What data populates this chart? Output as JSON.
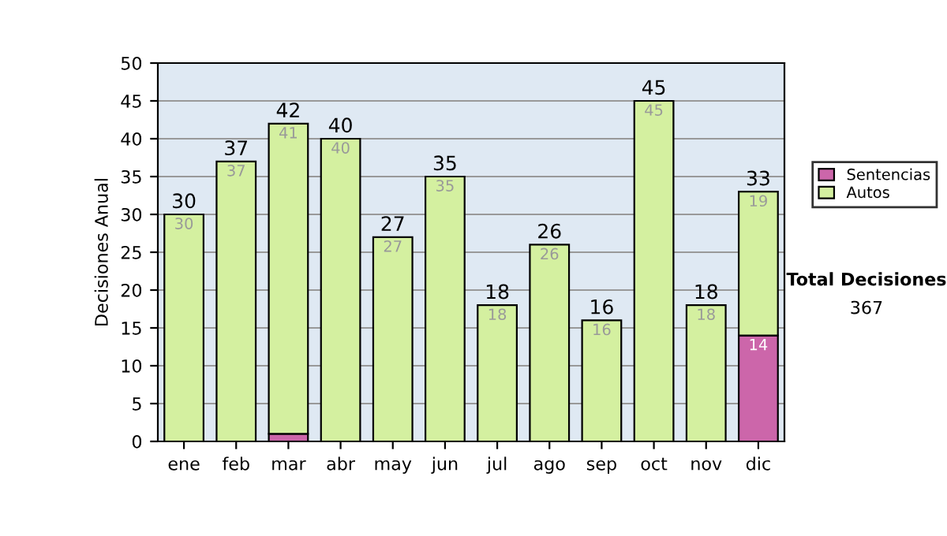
{
  "chart_data": {
    "type": "bar",
    "ylabel": "Decisiones Anual",
    "categories": [
      "ene",
      "feb",
      "mar",
      "abr",
      "may",
      "jun",
      "jul",
      "ago",
      "sep",
      "oct",
      "nov",
      "dic"
    ],
    "stacked": true,
    "series": [
      {
        "name": "Sentencias",
        "color": "#cc66aa",
        "values": [
          0,
          0,
          1,
          0,
          0,
          0,
          0,
          0,
          0,
          0,
          0,
          14
        ],
        "value_labels": [
          null,
          null,
          null,
          null,
          null,
          null,
          null,
          null,
          null,
          null,
          null,
          "14"
        ]
      },
      {
        "name": "Autos",
        "color": "#d4f0a0",
        "values": [
          30,
          37,
          41,
          40,
          27,
          35,
          18,
          26,
          16,
          45,
          18,
          19
        ],
        "value_labels": [
          "30",
          "37",
          "41",
          "40",
          "27",
          "35",
          "18",
          "26",
          "16",
          "45",
          "18",
          "19"
        ]
      }
    ],
    "totals": [
      "30",
      "37",
      "42",
      "40",
      "27",
      "35",
      "18",
      "26",
      "16",
      "45",
      "18",
      "33"
    ],
    "ylim": [
      0,
      50
    ],
    "yticks": [
      0,
      5,
      10,
      15,
      20,
      25,
      30,
      35,
      40,
      45,
      50
    ],
    "grid": "y",
    "legend": "right",
    "annotations": [
      "Total Decisiones",
      "367"
    ]
  }
}
